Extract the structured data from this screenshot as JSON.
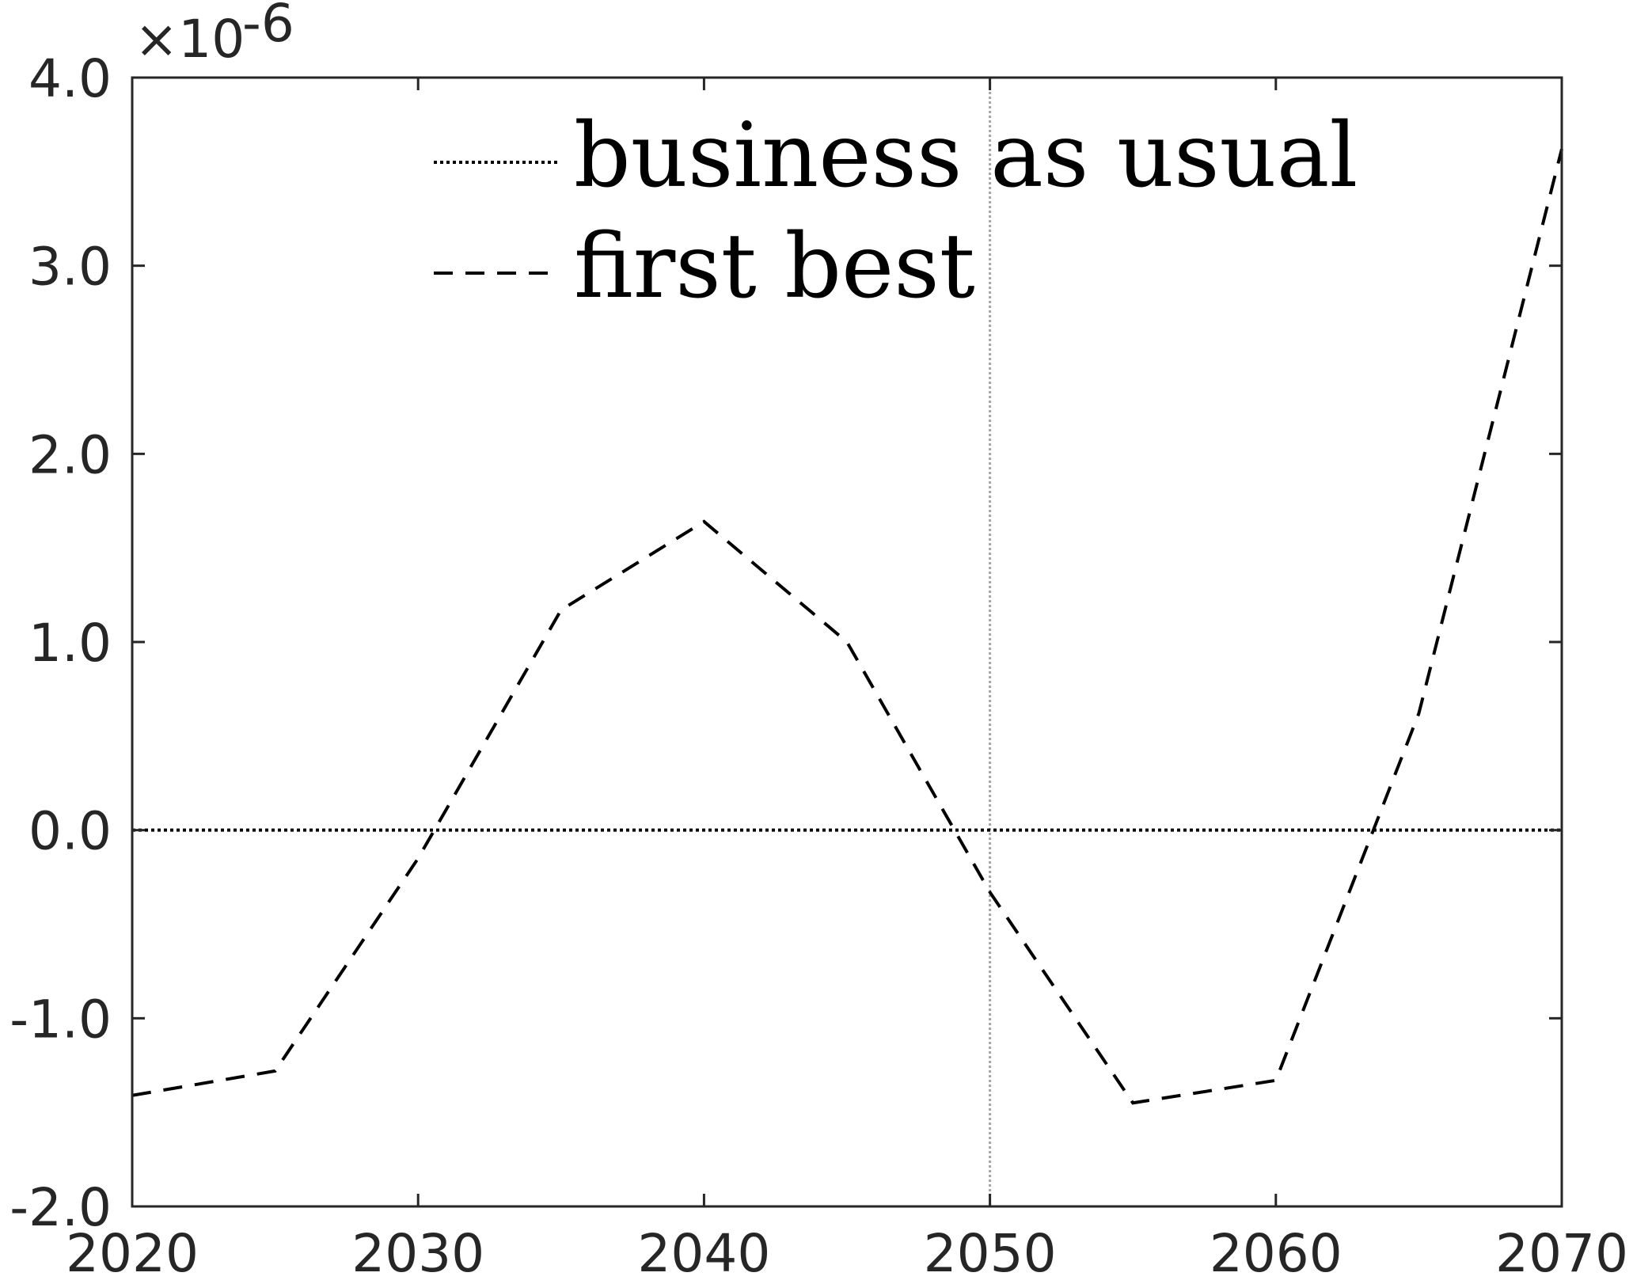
{
  "chart_data": {
    "type": "line",
    "title": "",
    "xlabel": "",
    "ylabel": "",
    "xlim": [
      2020,
      2070
    ],
    "ylim": [
      -2.0,
      4.0
    ],
    "y_exponent_label": "×10",
    "y_exponent_power": "-6",
    "x_ticks": [
      2020,
      2030,
      2040,
      2050,
      2060,
      2070
    ],
    "x_tick_labels": [
      "2020",
      "2030",
      "2040",
      "2050",
      "2060",
      "2070"
    ],
    "y_ticks": [
      -2.0,
      -1.0,
      0.0,
      1.0,
      2.0,
      3.0,
      4.0
    ],
    "y_tick_labels": [
      "-2.0",
      "-1.0",
      "0.0",
      "1.0",
      "2.0",
      "3.0",
      "4.0"
    ],
    "reference_line_x": 2050,
    "grid": false,
    "legend_position": "top",
    "series": [
      {
        "name": "business as usual",
        "style": "dotted",
        "color": "#000000",
        "x": [
          2020,
          2025,
          2030,
          2035,
          2040,
          2045,
          2050,
          2055,
          2060,
          2065,
          2070
        ],
        "y": [
          0,
          0,
          0,
          0,
          0,
          0,
          0,
          0,
          0,
          0,
          0
        ]
      },
      {
        "name": "first best",
        "style": "dashed",
        "color": "#000000",
        "x": [
          2020,
          2025,
          2030,
          2035,
          2040,
          2045,
          2050,
          2055,
          2060,
          2065,
          2070
        ],
        "y": [
          -1.41,
          -1.28,
          -0.15,
          1.17,
          1.64,
          1.0,
          -0.33,
          -1.45,
          -1.33,
          0.62,
          3.62
        ]
      }
    ]
  }
}
